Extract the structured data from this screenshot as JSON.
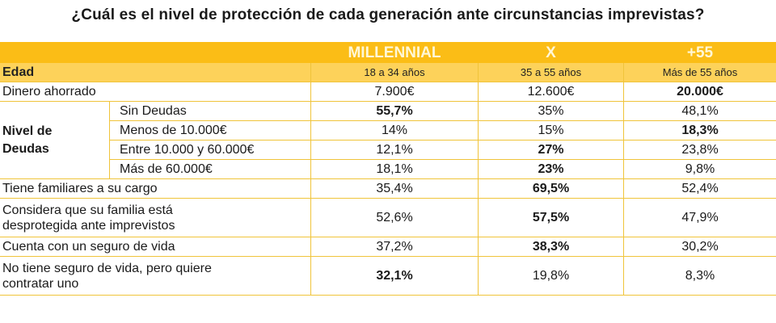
{
  "title": "¿Cuál es el nivel de protección de cada generación ante circunstancias imprevistas?",
  "header_row": {
    "columns": [
      "MILLENNIAL",
      "X",
      "+55"
    ]
  },
  "age_row": {
    "label": "Edad",
    "values": [
      "18 a 34 años",
      "35 a 55 años",
      "Más de 55 años"
    ]
  },
  "savings_row": {
    "label": "Dinero ahorrado",
    "values": [
      "7.900€",
      "12.600€",
      "20.000€"
    ]
  },
  "debt_group": {
    "label": "Nivel de\nDeudas",
    "rows": [
      {
        "label": "Sin Deudas",
        "values": [
          "55,7%",
          "35%",
          "48,1%"
        ]
      },
      {
        "label": "Menos de 10.000€",
        "values": [
          "14%",
          "15%",
          "18,3%"
        ]
      },
      {
        "label": "Entre 10.000  y 60.000€",
        "values": [
          "12,1%",
          "27%",
          "23,8%"
        ]
      },
      {
        "label": "Más de 60.000€",
        "values": [
          "18,1%",
          "23%",
          "9,8%"
        ]
      }
    ]
  },
  "other_rows": [
    {
      "label": "Tiene familiares  a su cargo",
      "values": [
        "35,4%",
        "69,5%",
        "52,4%"
      ]
    },
    {
      "label": "Considera que su familia está\ndesprotegida ante imprevistos",
      "values": [
        "52,6%",
        "57,5%",
        "47,9%"
      ]
    },
    {
      "label": "Cuenta con un seguro  de vida",
      "values": [
        "37,2%",
        "38,3%",
        "30,2%"
      ]
    },
    {
      "label": "No tiene seguro  de vida, pero quiere\ncontratar uno",
      "values": [
        "32,1%",
        "19,8%",
        "8,3%"
      ]
    }
  ],
  "colors": {
    "header": "#fbbd16",
    "age_row": "#fdd25a",
    "border": "#f0c43a"
  }
}
